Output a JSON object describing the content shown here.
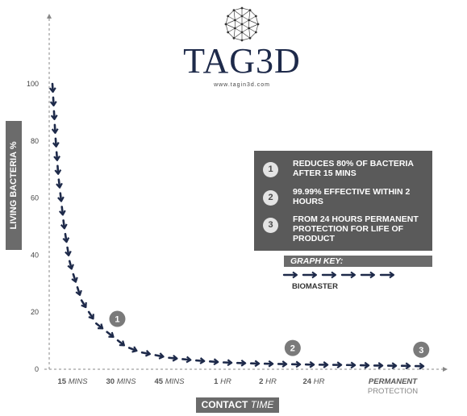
{
  "logo": {
    "word": "TAG3D",
    "url": "www.tagin3d.com",
    "icon": "geodesic-sphere-icon"
  },
  "colors": {
    "arrow": "#1e2a4a",
    "panel": "#5a5a5a",
    "label_box": "#6b6b6b",
    "marker": "#7a7a7a"
  },
  "info": {
    "items": [
      {
        "num": "1",
        "text": "REDUCES 80% OF BACTERIA AFTER 15 MINS"
      },
      {
        "num": "2",
        "text": "99.99% EFFECTIVE WITHIN 2 HOURS"
      },
      {
        "num": "3",
        "text": "FROM 24 HOURS PERMANENT PROTECTION FOR LIFE OF PRODUCT"
      }
    ]
  },
  "key": {
    "title": "GRAPH KEY:",
    "label": "BIOMASTER"
  },
  "chart_data": {
    "type": "line",
    "ylabel": "LIVING BACTERIA %",
    "xlabel_main": "CONTACT",
    "xlabel_rest": " TIME",
    "ylim": [
      0,
      100
    ],
    "yticks": [
      "0",
      "20",
      "40",
      "60",
      "80",
      "100"
    ],
    "xticks": [
      {
        "main": "15",
        "rest": " MINS"
      },
      {
        "main": "30",
        "rest": " MINS"
      },
      {
        "main": "45",
        "rest": " MINS"
      },
      {
        "main": "1",
        "rest": " HR"
      },
      {
        "main": "2",
        "rest": " HR"
      },
      {
        "main": "24",
        "rest": " HR"
      },
      {
        "main": "PERMANENT",
        "rest": "PROTECTION"
      }
    ],
    "series": [
      {
        "name": "BIOMASTER",
        "x": [
          0,
          0.05,
          0.1,
          0.2,
          0.3,
          0.5,
          0.75,
          1,
          1.25,
          1.5,
          2,
          2.5,
          3,
          3.5,
          4,
          4.5,
          5,
          5.5,
          6,
          6.5
        ],
        "y": [
          100,
          82,
          68,
          50,
          37,
          24,
          16,
          12,
          8,
          6,
          4,
          3,
          2.3,
          2,
          1.8,
          1.6,
          1.5,
          1.3,
          1.2,
          1.0
        ]
      }
    ],
    "markers": [
      {
        "label": "1",
        "x": 1,
        "y": 12
      },
      {
        "label": "2",
        "x": 4,
        "y": 1.8
      },
      {
        "label": "3",
        "x": 6.2,
        "y": 1.2
      }
    ]
  }
}
